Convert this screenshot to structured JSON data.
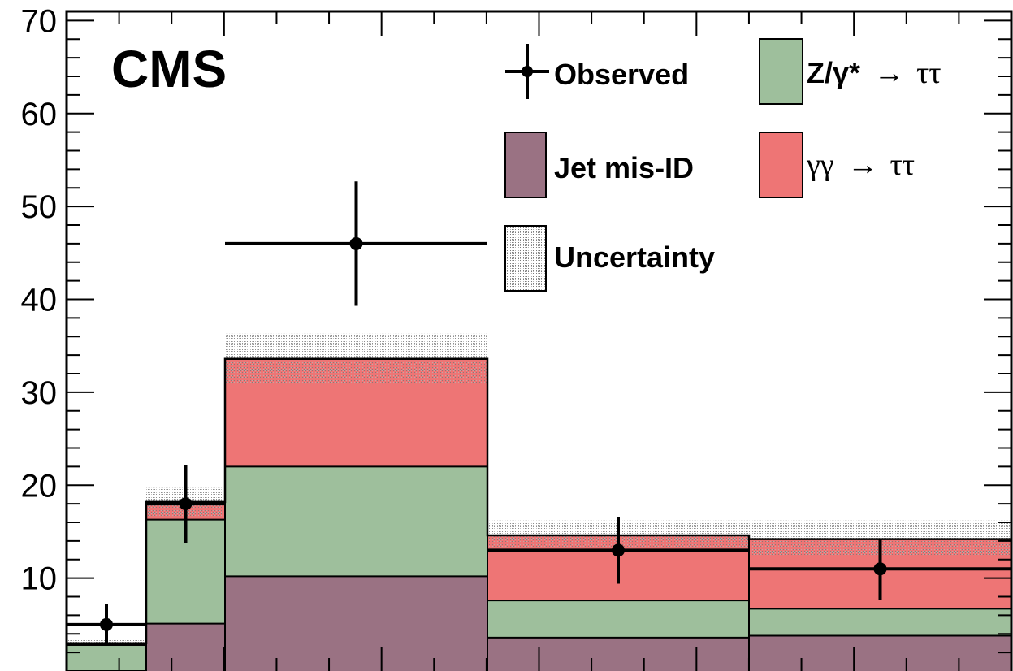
{
  "chart_data": {
    "type": "bar",
    "stacked": true,
    "bins": [
      [
        82,
        180
      ],
      [
        180,
        277
      ],
      [
        277,
        600
      ],
      [
        600,
        922
      ],
      [
        922,
        1245
      ]
    ],
    "ylim": [
      0,
      71
    ],
    "yticks": [
      "10",
      "20",
      "30",
      "40",
      "50",
      "60",
      "70"
    ],
    "grid": false,
    "legend_placement": "top-right",
    "annotation": "CMS",
    "series": [
      {
        "name": "Jet mis-ID",
        "color": "#9a7283",
        "values": [
          0,
          5.1,
          10.2,
          3.6,
          3.8
        ]
      },
      {
        "name": "Z/γ* → ττ",
        "color": "#9ebf9c",
        "values": [
          2.8,
          11.2,
          11.8,
          4.0,
          2.9
        ]
      },
      {
        "name": "γγ → ττ",
        "color": "#ee7575",
        "values": [
          0.2,
          1.9,
          11.6,
          7.0,
          7.5
        ]
      }
    ],
    "totals": [
      3.0,
      18.2,
      33.6,
      14.6,
      14.2
    ],
    "uncertainty": {
      "name": "Uncertainty",
      "low": [
        2.6,
        16.7,
        31.0,
        13.2,
        12.4
      ],
      "high": [
        3.4,
        19.7,
        36.3,
        16.2,
        16.2
      ]
    },
    "observed": {
      "name": "Observed",
      "values": [
        5,
        18,
        46,
        13,
        11
      ],
      "err_low": [
        2.2,
        4.2,
        6.7,
        3.6,
        3.3
      ],
      "err_high": [
        2.2,
        4.2,
        6.7,
        3.6,
        3.3
      ]
    },
    "legend": {
      "observed": "Observed",
      "z": "Z/γ*",
      "z_arrow": "→",
      "z_tt": "ττ",
      "jet": "Jet mis-ID",
      "gg": "γγ",
      "gg_arrow": "→",
      "gg_tt": "ττ",
      "unc": "Uncertainty"
    },
    "colors": {
      "frame": "#000000",
      "hatch": "#9b9b9b"
    }
  }
}
